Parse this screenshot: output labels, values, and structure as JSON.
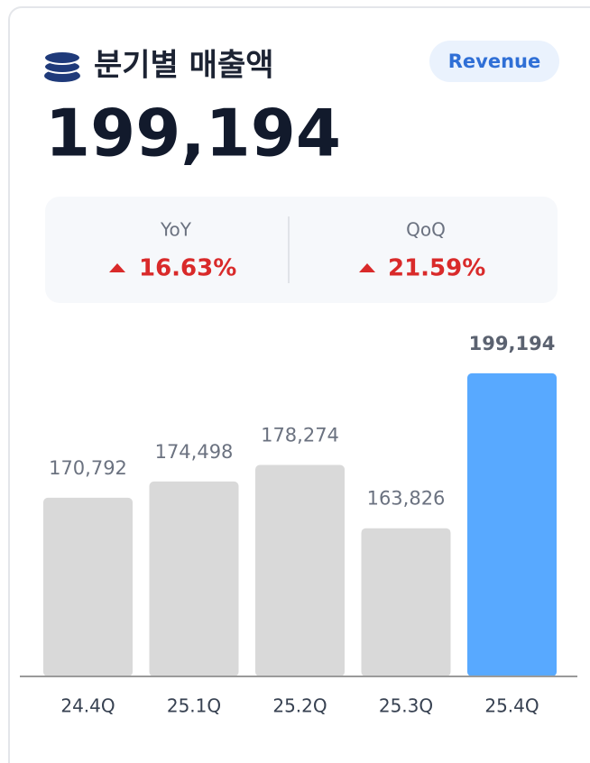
{
  "header": {
    "title": "분기별 매출액",
    "badge": "Revenue",
    "value": "199,194"
  },
  "stats": [
    {
      "label": "YoY",
      "value": "16.63%"
    },
    {
      "label": "QoQ",
      "value": "21.59%"
    }
  ],
  "chart_data": {
    "type": "bar",
    "categories": [
      "24.4Q",
      "25.1Q",
      "25.2Q",
      "25.3Q",
      "25.4Q"
    ],
    "values": [
      170792,
      174498,
      178274,
      163826,
      199194
    ],
    "value_labels": [
      "170,792",
      "174,498",
      "178,274",
      "163,826",
      "199,194"
    ],
    "colors": [
      "#d9d9d9",
      "#d9d9d9",
      "#d9d9d9",
      "#d9d9d9",
      "#58a9ff"
    ],
    "ylim": [
      130000,
      200000
    ]
  }
}
